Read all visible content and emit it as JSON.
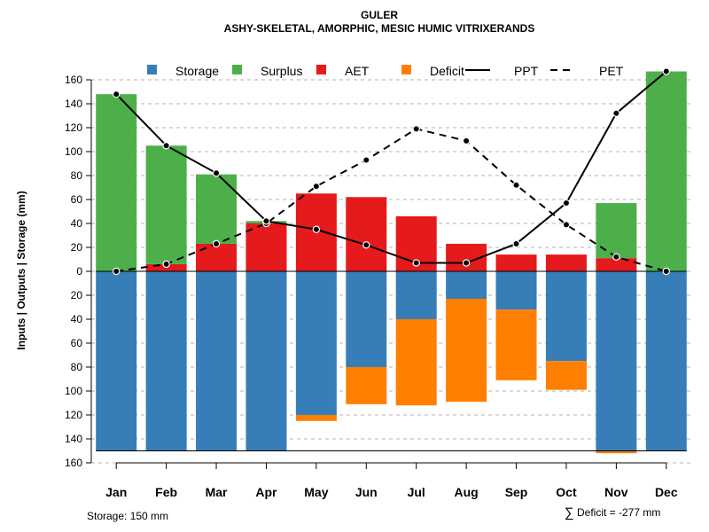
{
  "chart_data": {
    "type": "bar",
    "title": "GULER",
    "subtitle": "ASHY-SKELETAL, AMORPHIC, MESIC HUMIC VITRIXERANDS",
    "ylabel": "Inputs | Outputs | Storage    (mm)",
    "ylim": [
      -160,
      160
    ],
    "y_ticks": [
      160,
      140,
      120,
      100,
      80,
      60,
      40,
      20,
      0,
      20,
      40,
      60,
      80,
      100,
      120,
      140,
      160
    ],
    "categories": [
      "Jan",
      "Feb",
      "Mar",
      "Apr",
      "May",
      "Jun",
      "Jul",
      "Aug",
      "Sep",
      "Oct",
      "Nov",
      "Dec"
    ],
    "legend": [
      {
        "label": "Storage",
        "kind": "box",
        "color": "#377EB8"
      },
      {
        "label": "Surplus",
        "kind": "box",
        "color": "#4DAF4A"
      },
      {
        "label": "AET",
        "kind": "box",
        "color": "#E41A1C"
      },
      {
        "label": "Deficit",
        "kind": "box",
        "color": "#FF7F00"
      },
      {
        "label": "PPT",
        "kind": "solid",
        "color": "#000000"
      },
      {
        "label": "PET",
        "kind": "dashed",
        "color": "#000000"
      }
    ],
    "series": [
      {
        "name": "Storage",
        "color": "#377EB8",
        "values": [
          150,
          150,
          150,
          150,
          120,
          80,
          40,
          23,
          32,
          75,
          150,
          150
        ]
      },
      {
        "name": "Deficit",
        "color": "#FF7F00",
        "values": [
          0,
          0,
          0,
          0,
          5,
          31,
          72,
          86,
          59,
          24,
          2,
          0
        ]
      },
      {
        "name": "AET",
        "color": "#E41A1C",
        "values": [
          0,
          6,
          23,
          40,
          65,
          62,
          46,
          23,
          14,
          14,
          11,
          0
        ]
      },
      {
        "name": "Surplus",
        "color": "#4DAF4A",
        "values": [
          148,
          99,
          58,
          2,
          0,
          0,
          0,
          0,
          0,
          0,
          46,
          167
        ]
      },
      {
        "name": "PPT",
        "color": "#000000",
        "values": [
          148,
          105,
          82,
          42,
          35,
          22,
          7,
          7,
          23,
          57,
          132,
          167
        ]
      },
      {
        "name": "PET",
        "color": "#000000",
        "values": [
          0,
          6,
          23,
          40,
          71,
          93,
          119,
          109,
          72,
          39,
          12,
          0
        ]
      }
    ],
    "storage_capacity": 150,
    "grid": true,
    "legend_position": "top"
  },
  "footer": {
    "storage_label": "Storage: 150 mm",
    "deficit_symbol": "∑",
    "deficit_label": "Deficit = -277 mm"
  }
}
